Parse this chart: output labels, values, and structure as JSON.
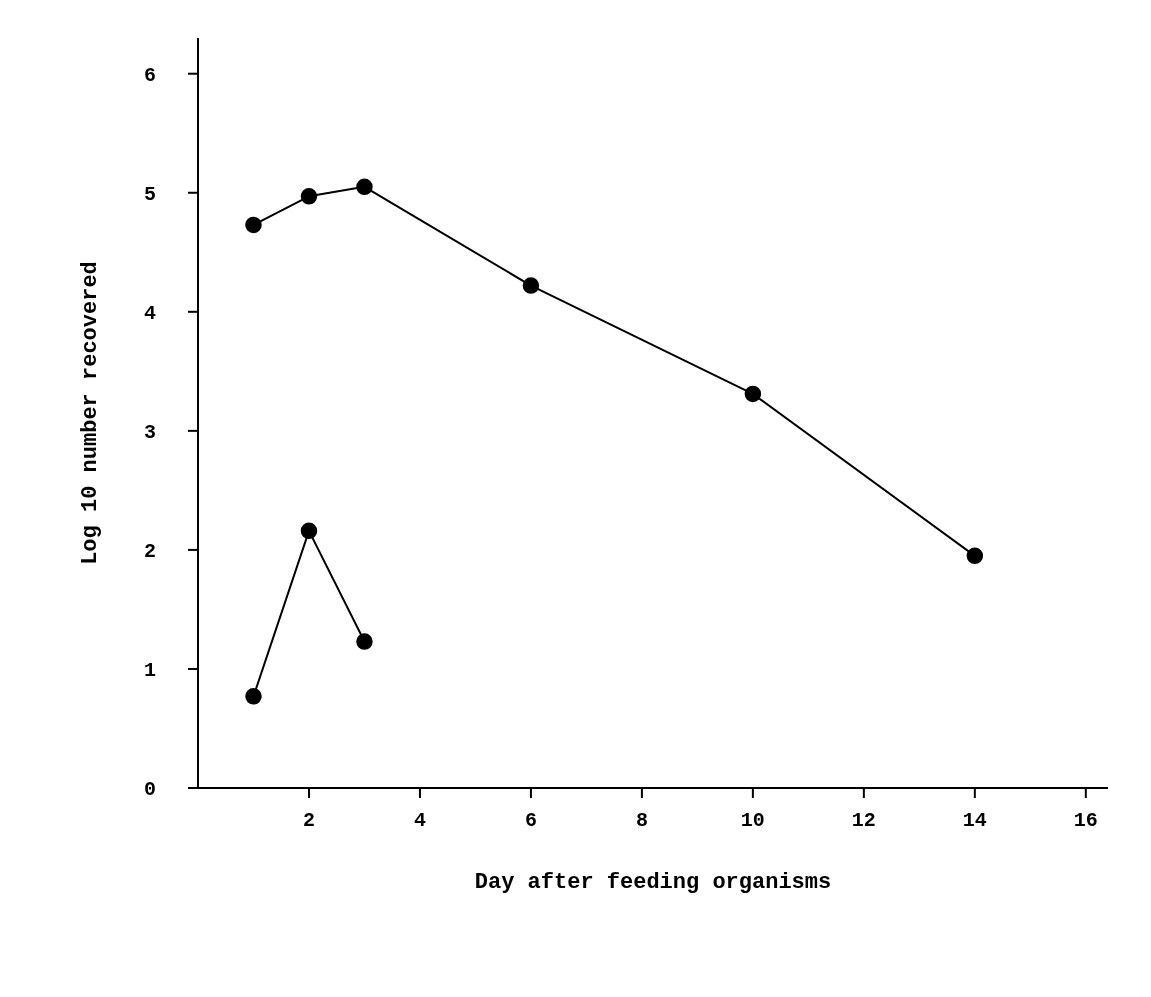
{
  "chart_data": {
    "type": "line",
    "xlabel": "Day after feeding organisms",
    "ylabel": "Log 10 number recovered",
    "series": [
      {
        "color": "#000000",
        "x": [
          1,
          2,
          3,
          6,
          10,
          14
        ],
        "values": [
          4.73,
          4.97,
          5.05,
          4.22,
          3.31,
          1.95
        ]
      },
      {
        "color": "#000000",
        "x": [
          1,
          2,
          3
        ],
        "values": [
          0.77,
          2.16,
          1.23
        ]
      }
    ],
    "xlim": [
      0,
      16.4
    ],
    "xticks": [
      2,
      4,
      6,
      8,
      10,
      12,
      14,
      16
    ],
    "ylim": [
      0,
      6.3
    ],
    "yticks": [
      0,
      1,
      2,
      3,
      4,
      5,
      6
    ],
    "grid": false,
    "legend": false,
    "marker": "circle",
    "line_style": "solid"
  }
}
